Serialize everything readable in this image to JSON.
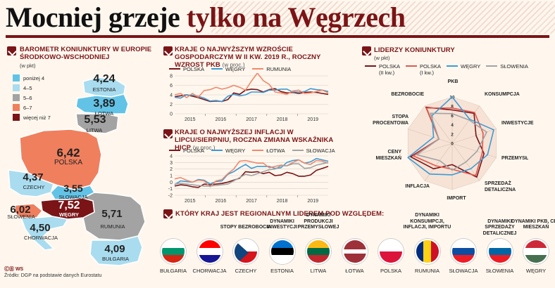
{
  "header": {
    "title_part1": "Mocniej grzeje ",
    "title_part2": "tylko na Węgrzech"
  },
  "map_panel": {
    "title": "Barometr koniunktury w Europie Środkowo-wschodniej",
    "subtitle": "(w pkt)",
    "legend": [
      {
        "label": "poniżej 4",
        "color": "#62c3e6"
      },
      {
        "label": "4–5",
        "color": "#a9dcef"
      },
      {
        "label": "5–6",
        "color": "#a3a3a3"
      },
      {
        "label": "6–7",
        "color": "#f07f5e"
      },
      {
        "label": "więcej niż 7",
        "color": "#7a1416"
      }
    ],
    "countries": [
      {
        "name": "Estonia",
        "value": "4,24"
      },
      {
        "name": "Łotwa",
        "value": "3,89"
      },
      {
        "name": "Litwa",
        "value": "5,53"
      },
      {
        "name": "Polska",
        "value": "6,42"
      },
      {
        "name": "Czechy",
        "value": "4,37"
      },
      {
        "name": "Słowacja",
        "value": "3,55"
      },
      {
        "name": "Węgry",
        "value": "7,52"
      },
      {
        "name": "Słowenia",
        "value": "6,02"
      },
      {
        "name": "Chorwacja",
        "value": "4,50"
      },
      {
        "name": "Rumunia",
        "value": "5,71"
      },
      {
        "name": "Bułgaria",
        "value": "4,09"
      }
    ],
    "source": "Źródło: DGP na podstawie danych Eurostatu",
    "logo": "ⒸⒷ WS"
  },
  "chart_data": [
    {
      "type": "line",
      "title": "Kraje o najwyższym wzroście gospodarczym w II kw. 2019 r., roczny wzrost PKB",
      "subtitle": "(w proc.)",
      "x_tick_labels": [
        "2015",
        "2016",
        "2017",
        "2018",
        "2019"
      ],
      "ylim": [
        0,
        8
      ],
      "y_ticks": [
        0,
        2,
        4,
        6,
        8
      ],
      "grid": true,
      "series": [
        {
          "name": "Polska",
          "color": "#7a1416",
          "values": [
            3.6,
            3.8,
            4.0,
            3.7,
            3.4,
            3.0,
            2.6,
            2.7,
            2.6,
            3.0,
            4.4,
            4.1,
            5.0,
            5.2,
            5.1,
            4.6,
            5.1,
            5.3,
            4.7,
            4.4,
            4.5,
            4.3,
            4.5,
            4.6,
            4.5,
            4.3,
            4.1
          ]
        },
        {
          "name": "Węgry",
          "color": "#3d9ad4",
          "values": [
            3.5,
            3.3,
            4.0,
            3.9,
            3.7,
            3.3,
            2.7,
            2.8,
            2.6,
            3.7,
            4.1,
            3.8,
            4.0,
            4.6,
            4.6,
            4.5,
            5.0,
            5.0,
            5.2,
            5.2,
            4.6,
            4.6,
            4.7,
            5.3,
            5.1,
            5.0,
            4.7
          ]
        },
        {
          "name": "Rumunia",
          "color": "#f0886a",
          "values": [
            4.0,
            4.3,
            3.4,
            4.3,
            3.5,
            4.9,
            5.1,
            5.6,
            5.2,
            5.5,
            6.0,
            5.6,
            5.0,
            6.9,
            8.6,
            7.0,
            6.2,
            4.6,
            4.4,
            4.1,
            4.8,
            5.0,
            4.3,
            4.4,
            4.7,
            5.0,
            4.4
          ]
        }
      ]
    },
    {
      "type": "line",
      "title": "Kraje o najwyższej inflacji w lipcu/sierpniu, roczna zmiana wskaźnika HICP",
      "subtitle": "(w proc.)",
      "x_tick_labels": [
        "2015",
        "2016",
        "2017",
        "2018",
        "2019"
      ],
      "ylim": [
        -2,
        4
      ],
      "y_ticks": [
        -2,
        -1,
        0,
        1,
        2,
        3,
        4
      ],
      "grid": true,
      "series": [
        {
          "name": "Polska",
          "color": "#7a1416",
          "values": [
            -0.6,
            -0.4,
            -0.5,
            -0.7,
            -0.8,
            -0.3,
            -0.4,
            -0.3,
            -0.2,
            0.0,
            0.3,
            0.6,
            1.6,
            1.5,
            1.6,
            1.3,
            1.5,
            1.0,
            1.1,
            1.5,
            1.3,
            0.9,
            0.9,
            1.1,
            1.8,
            2.1,
            2.4
          ]
        },
        {
          "name": "Węgry",
          "color": "#3d9ad4",
          "values": [
            -0.4,
            0.2,
            0.1,
            0.0,
            0.4,
            0.3,
            -0.3,
            0.1,
            0.2,
            1.2,
            1.6,
            2.2,
            2.7,
            2.1,
            2.4,
            2.4,
            2.4,
            2.1,
            2.2,
            3.0,
            3.3,
            3.4,
            2.9,
            3.1,
            3.6,
            3.4,
            3.2
          ]
        },
        {
          "name": "Łotwa",
          "color": "#f0886a",
          "values": [
            0.5,
            0.7,
            0.3,
            0.0,
            0.3,
            0.2,
            -0.7,
            0.2,
            0.4,
            1.3,
            2.0,
            3.2,
            3.3,
            3.1,
            2.9,
            2.9,
            2.2,
            2.4,
            2.6,
            2.5,
            3.0,
            3.4,
            2.9,
            2.7,
            3.3,
            3.2,
            2.9
          ]
        },
        {
          "name": "Słowacja",
          "color": "#a3a3a3",
          "values": [
            -0.3,
            -0.2,
            -0.3,
            -0.4,
            -0.5,
            -0.6,
            -0.6,
            -0.5,
            -0.4,
            -0.3,
            0.2,
            0.7,
            1.2,
            1.0,
            1.3,
            1.6,
            1.9,
            2.0,
            2.5,
            2.5,
            2.8,
            2.8,
            2.1,
            2.2,
            2.6,
            2.8,
            3.0
          ]
        }
      ]
    },
    {
      "type": "radar",
      "title": "Liderzy koniunktury",
      "subtitle": "(w pkt)",
      "axes": [
        "PKB",
        "Konsumpcja",
        "Inwestycje",
        "Przemysł",
        "Sprzedaż detaliczna",
        "Import",
        "Inflacja",
        "Ceny mieszkań",
        "Stopa procentowa",
        "Bezrobocie"
      ],
      "ticks": [
        0,
        2,
        4,
        6,
        8,
        10
      ],
      "tick_labels": [
        "0",
        "2",
        "4",
        "6",
        "8",
        "10"
      ],
      "rmax": 10,
      "series": [
        {
          "name": "Polska",
          "note": "(II kw.)",
          "color": "#7a1416",
          "values": [
            7.2,
            8.0,
            5.4,
            7.2,
            9.0,
            4.6,
            6.8,
            9.4,
            3.0,
            9.6
          ]
        },
        {
          "name": "Polska",
          "note": "(I kw.)",
          "color": "#e2574c",
          "values": [
            7.6,
            8.2,
            7.0,
            6.8,
            8.6,
            5.6,
            6.0,
            8.8,
            3.0,
            9.4
          ]
        },
        {
          "name": "Węgry",
          "color": "#3d9ad4",
          "values": [
            10.0,
            6.4,
            9.4,
            8.0,
            6.8,
            6.8,
            8.2,
            10.0,
            4.2,
            7.4
          ]
        },
        {
          "name": "Słowenia",
          "color": "#a3a3a3",
          "values": [
            6.4,
            6.2,
            7.8,
            5.6,
            5.0,
            5.8,
            4.6,
            8.0,
            3.0,
            8.0
          ]
        }
      ]
    }
  ],
  "leaders_panel": {
    "title": "Który kraj jest regionalnym liderem pod względem:",
    "categories": [
      {
        "label": "Stopy bezrobocia",
        "country": "Czechy"
      },
      {
        "label": "Dynamiki inwestycji",
        "country": "Estonia"
      },
      {
        "label": "Dynamiki produkcji przemysłowej",
        "country": "Litwa"
      },
      {
        "label": "Dynamiki konsumpcji, inflacji, importu",
        "country": "Rumunia"
      },
      {
        "label": "Dynamiki sprzedaży detalicznej",
        "country": "Słowenia"
      },
      {
        "label": "Dynamiki PKB, cen mieszkań",
        "country": "Węgry"
      }
    ],
    "countries": [
      "Bułgaria",
      "Chorwacja",
      "Czechy",
      "Estonia",
      "Litwa",
      "Łotwa",
      "Polska",
      "Rumunia",
      "Słowacja",
      "Słowenia",
      "Węgry"
    ]
  }
}
